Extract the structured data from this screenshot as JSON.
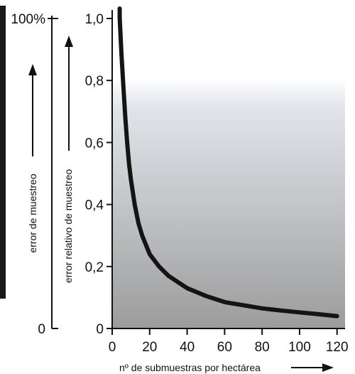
{
  "chart_data": {
    "type": "line",
    "xlabel": "nº de submuestras por hectárea",
    "ylabel": "error relativo de muestreo",
    "ylabel_outer": "error de muestreo",
    "x_ticks": [
      "0",
      "20",
      "40",
      "60",
      "80",
      "100",
      "120"
    ],
    "y_ticks": [
      "0",
      "0,2",
      "0,4",
      "0,6",
      "0,8",
      "1,0"
    ],
    "outer_ticks": [
      "0",
      "100%"
    ],
    "xlim": [
      0,
      122
    ],
    "ylim": [
      0,
      1.0
    ],
    "grid": false,
    "series": [
      {
        "x": [
          4,
          5,
          6,
          7,
          8,
          9,
          10,
          12,
          14,
          16,
          18,
          20,
          25,
          30,
          35,
          40,
          50,
          60,
          70,
          80,
          90,
          100,
          110,
          120
        ],
        "y": [
          1.0,
          0.88,
          0.78,
          0.68,
          0.6,
          0.53,
          0.48,
          0.4,
          0.34,
          0.3,
          0.27,
          0.24,
          0.2,
          0.17,
          0.15,
          0.13,
          0.105,
          0.085,
          0.075,
          0.065,
          0.058,
          0.052,
          0.046,
          0.04
        ]
      }
    ],
    "colors": {
      "line": "#141414",
      "axis": "#111111",
      "gradient_top": "#ffffff",
      "gradient_bottom": "#9c9c9c"
    }
  }
}
